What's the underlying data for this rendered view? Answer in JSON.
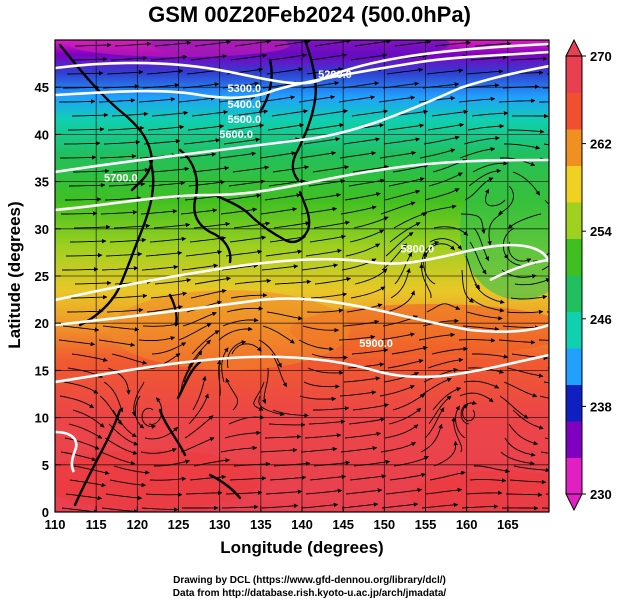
{
  "title": "GSM 00Z20Feb2024 (500.0hPa)",
  "axes": {
    "xlabel": "Longitude (degrees)",
    "ylabel": "Latitude  (degrees)",
    "x_ticks": [
      "110",
      "115",
      "120",
      "125",
      "130",
      "135",
      "140",
      "145",
      "150",
      "155",
      "160",
      "165"
    ],
    "y_ticks": [
      "0",
      "5",
      "10",
      "15",
      "20",
      "25",
      "30",
      "35",
      "40",
      "45"
    ],
    "x_range": [
      110,
      170
    ],
    "y_range": [
      0,
      50
    ]
  },
  "colorbar": {
    "labels": [
      "270",
      "262",
      "254",
      "246",
      "238",
      "230"
    ],
    "min": 230,
    "max": 270,
    "colors": [
      "#e020c0",
      "#8000c0",
      "#1020c0",
      "#20a0ff",
      "#10d0b0",
      "#20c060",
      "#40c020",
      "#a0d020",
      "#f0d020",
      "#f09020",
      "#f05030",
      "#e84050"
    ]
  },
  "contours": {
    "labels": [
      {
        "text": "5200.0",
        "lon": 144,
        "lat": 46
      },
      {
        "text": "5300.0",
        "lon": 133,
        "lat": 44.5
      },
      {
        "text": "5400.0",
        "lon": 133,
        "lat": 42.8
      },
      {
        "text": "5500.0",
        "lon": 133,
        "lat": 41.2
      },
      {
        "text": "5600.0",
        "lon": 132,
        "lat": 39.6
      },
      {
        "text": "5700.0",
        "lon": 118,
        "lat": 35
      },
      {
        "text": "5800.0",
        "lon": 154,
        "lat": 27.5
      },
      {
        "text": "5900.0",
        "lon": 149,
        "lat": 17.5
      }
    ]
  },
  "credits": {
    "line1": "Drawing by DCL (https://www.gfd-dennou.org/library/dcl/)",
    "line2": "Data from http://database.rish.kyoto-u.ac.jp/arch/jmadata/"
  }
}
